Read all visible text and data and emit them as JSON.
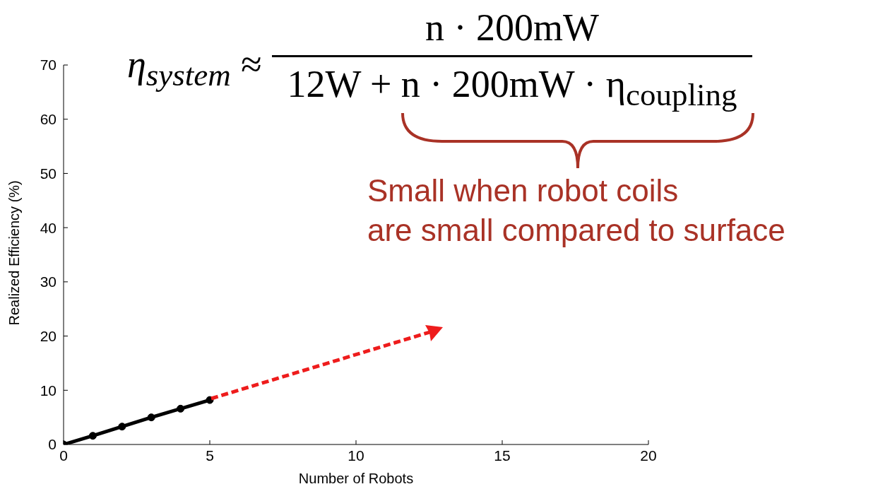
{
  "chart_data": {
    "type": "line",
    "xlabel": "Number of Robots",
    "ylabel": "Realized Efficiency (%)",
    "xlim": [
      0,
      20
    ],
    "xticks": [
      0,
      5,
      10,
      15,
      20
    ],
    "ylim": [
      0,
      70
    ],
    "yticks": [
      0,
      10,
      20,
      30,
      40,
      50,
      60,
      70
    ],
    "marker": "circle",
    "line_style": "solid",
    "series": [
      {
        "color": "#000000",
        "x": [
          0,
          1,
          2,
          3,
          4,
          5
        ],
        "values": [
          0,
          1.6,
          3.3,
          5.0,
          6.6,
          8.2
        ]
      }
    ],
    "annotations": [
      "η$_{system}$ ≈",
      "n · 200mW",
      "12W + n · 200mW · η$_{coupling}$",
      "Small when robot coils",
      "are small compared to surface"
    ]
  }
}
